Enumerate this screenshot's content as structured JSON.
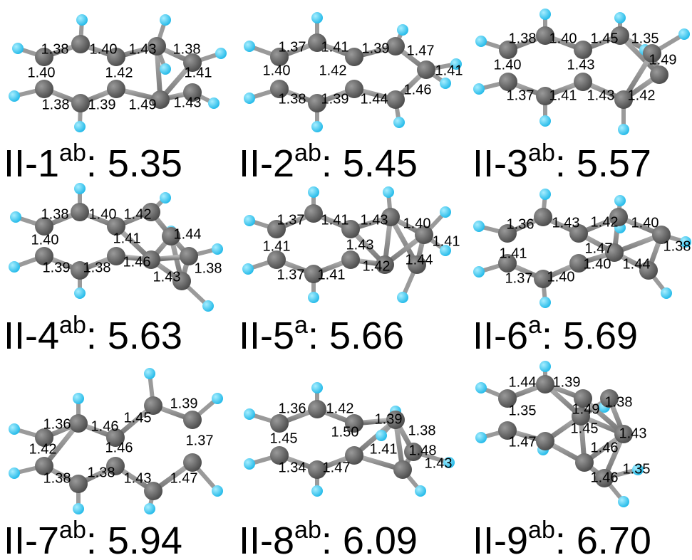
{
  "panels": [
    {
      "name": "II-1",
      "superscript": "ab",
      "energy_text": ": 5.35",
      "bond_lengths": [
        "1.38",
        "1.40",
        "1.43",
        "1.38",
        "1.40",
        "1.42",
        "1.41",
        "1.38",
        "1.39",
        "1.49",
        "1.43"
      ]
    },
    {
      "name": "II-2",
      "superscript": "ab",
      "energy_text": ": 5.45",
      "bond_lengths": [
        "1.37",
        "1.41",
        "1.39",
        "1.47",
        "1.40",
        "1.42",
        "1.41",
        "1.46",
        "1.38",
        "1.39",
        "1.44"
      ]
    },
    {
      "name": "II-3",
      "superscript": "ab",
      "energy_text": ": 5.57",
      "bond_lengths": [
        "1.38",
        "1.40",
        "1.45",
        "1.35",
        "1.40",
        "1.43",
        "1.49",
        "1.37",
        "1.41",
        "1.43",
        "1.42"
      ]
    },
    {
      "name": "II-4",
      "superscript": "ab",
      "energy_text": ": 5.63",
      "bond_lengths": [
        "1.38",
        "1.40",
        "1.42",
        "1.44",
        "1.40",
        "1.41",
        "1.39",
        "1.38",
        "1.46",
        "1.43",
        "1.38"
      ]
    },
    {
      "name": "II-5",
      "superscript": "a",
      "energy_text": ": 5.66",
      "bond_lengths": [
        "1.37",
        "1.41",
        "1.43",
        "1.40",
        "1.41",
        "1.43",
        "1.41",
        "1.37",
        "1.41",
        "1.42",
        "1.44"
      ]
    },
    {
      "name": "II-6",
      "superscript": "a",
      "energy_text": ": 5.69",
      "bond_lengths": [
        "1.36",
        "1.43",
        "1.42",
        "1.40",
        "1.41",
        "1.47",
        "1.38",
        "1.37",
        "1.40",
        "1.40",
        "1.44"
      ]
    },
    {
      "name": "II-7",
      "superscript": "ab",
      "energy_text": ": 5.94",
      "bond_lengths": [
        "1.39",
        "1.36",
        "1.46",
        "1.45",
        "1.37",
        "1.42",
        "1.46",
        "1.38",
        "1.38",
        "1.43",
        "1.47"
      ]
    },
    {
      "name": "II-8",
      "superscript": "ab",
      "energy_text": ": 6.09",
      "bond_lengths": [
        "1.36",
        "1.42",
        "1.39",
        "1.50",
        "1.38",
        "1.45",
        "1.41",
        "1.48",
        "1.43",
        "1.34",
        "1.47"
      ]
    },
    {
      "name": "II-9",
      "superscript": "ab",
      "energy_text": ": 6.70",
      "bond_lengths": [
        "1.44",
        "1.39",
        "1.38",
        "1.35",
        "1.49",
        "1.45",
        "1.43",
        "1.47",
        "1.46",
        "1.35",
        "1.46"
      ]
    }
  ]
}
